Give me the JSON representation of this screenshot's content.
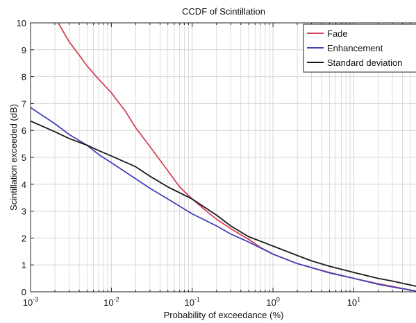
{
  "chart_data": {
    "type": "line",
    "title": "CCDF of Scintillation",
    "xlabel": "Probability of exceedance (%)",
    "ylabel": "Scintillation exceeded  (dB)",
    "x_scale": "log",
    "xlim": [
      0.001,
      60
    ],
    "ylim": [
      0,
      10
    ],
    "grid": true,
    "legend_position": "top-right",
    "x_ticks": [
      {
        "value": 0.001,
        "base": "10",
        "exp": "-3"
      },
      {
        "value": 0.01,
        "base": "10",
        "exp": "-2"
      },
      {
        "value": 0.1,
        "base": "10",
        "exp": "-1"
      },
      {
        "value": 1,
        "base": "10",
        "exp": "0"
      },
      {
        "value": 10,
        "base": "10",
        "exp": "1"
      }
    ],
    "y_ticks": [
      "0",
      "1",
      "2",
      "3",
      "4",
      "5",
      "6",
      "7",
      "8",
      "9",
      "10"
    ],
    "series": [
      {
        "name": "Fade",
        "color": "#d6405a",
        "x": [
          0.0022,
          0.003,
          0.004,
          0.005,
          0.007,
          0.01,
          0.015,
          0.02,
          0.03,
          0.05,
          0.07,
          0.1,
          0.15,
          0.2,
          0.3,
          0.5,
          0.7,
          1,
          2,
          3,
          5,
          10,
          20,
          30,
          60
        ],
        "y": [
          10,
          9.3,
          8.8,
          8.4,
          7.9,
          7.4,
          6.7,
          6.1,
          5.4,
          4.5,
          3.9,
          3.45,
          3.0,
          2.7,
          2.35,
          1.95,
          1.65,
          1.4,
          1.05,
          0.9,
          0.72,
          0.5,
          0.3,
          0.2,
          0.02
        ]
      },
      {
        "name": "Enhancement",
        "color": "#4141b8",
        "x": [
          0.001,
          0.002,
          0.003,
          0.005,
          0.007,
          0.01,
          0.02,
          0.03,
          0.05,
          0.1,
          0.2,
          0.3,
          0.5,
          1,
          2,
          3,
          5,
          10,
          20,
          30,
          60
        ],
        "y": [
          6.85,
          6.25,
          5.85,
          5.45,
          5.1,
          4.8,
          4.2,
          3.85,
          3.45,
          2.9,
          2.45,
          2.15,
          1.85,
          1.4,
          1.05,
          0.9,
          0.7,
          0.5,
          0.28,
          0.18,
          0.02
        ]
      },
      {
        "name": "Standard deviation",
        "color": "#1a1a1a",
        "x": [
          0.001,
          0.002,
          0.003,
          0.005,
          0.007,
          0.01,
          0.02,
          0.03,
          0.05,
          0.1,
          0.2,
          0.3,
          0.5,
          1,
          2,
          3,
          5,
          10,
          20,
          30,
          60
        ],
        "y": [
          6.35,
          5.95,
          5.7,
          5.45,
          5.25,
          5.05,
          4.65,
          4.3,
          3.9,
          3.45,
          2.85,
          2.45,
          2.05,
          1.7,
          1.35,
          1.15,
          0.95,
          0.72,
          0.5,
          0.4,
          0.2
        ]
      }
    ]
  }
}
